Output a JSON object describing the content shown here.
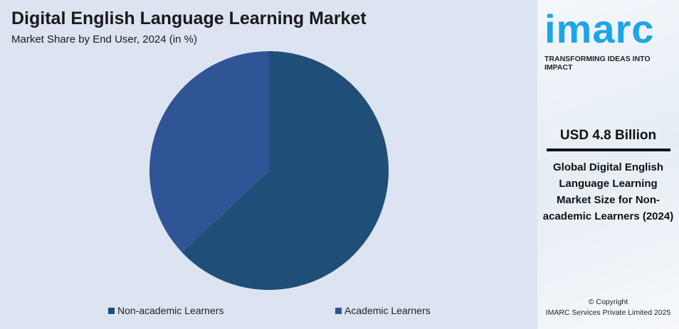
{
  "chart_data": {
    "type": "pie",
    "title": "Digital English Language Learning Market",
    "subtitle": "Market Share by End User, 2024 (in %)",
    "categories": [
      "Non-academic Learners",
      "Academic Learners"
    ],
    "values": [
      63,
      37
    ],
    "colors": [
      "#1f4e79",
      "#2f5597"
    ],
    "legend_position": "bottom"
  },
  "side": {
    "logo": "imarc",
    "tagline": "TRANSFORMING IDEAS INTO IMPACT",
    "value": "USD 4.8 Billion",
    "description": "Global Digital English Language Learning Market Size for Non-academic Learners (2024)",
    "copyright_line1": "© Copyright",
    "copyright_line2": "IMARC Services Private Limited 2025",
    "accent": "#1ba5ea"
  }
}
